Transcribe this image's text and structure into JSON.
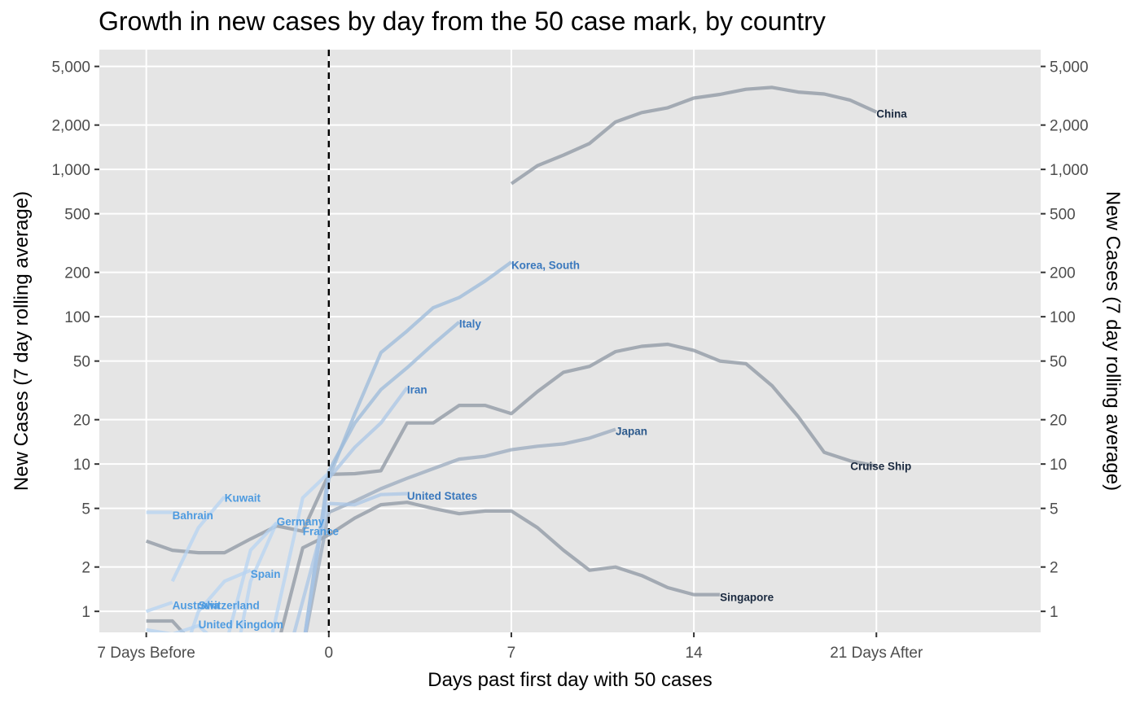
{
  "chart_data": {
    "type": "line",
    "title": "Growth in new cases by day from the 50 case mark, by country",
    "xlabel": "Days past first day with 50 cases",
    "ylabel": "New Cases (7 day rolling average)",
    "ylabel_right": "New Cases (7 day rolling average)",
    "y_scale": "log",
    "xlim": [
      -8.8,
      27.3
    ],
    "ylim": [
      0.72,
      6500
    ],
    "x_ticks": [
      {
        "value": -7,
        "label": "7 Days Before"
      },
      {
        "value": 0,
        "label": "0"
      },
      {
        "value": 7,
        "label": "7"
      },
      {
        "value": 14,
        "label": "14"
      },
      {
        "value": 21,
        "label": "21 Days After"
      }
    ],
    "y_ticks": [
      {
        "value": 1,
        "label": "1"
      },
      {
        "value": 2,
        "label": "2"
      },
      {
        "value": 5,
        "label": "5"
      },
      {
        "value": 10,
        "label": "10"
      },
      {
        "value": 20,
        "label": "20"
      },
      {
        "value": 50,
        "label": "50"
      },
      {
        "value": 100,
        "label": "100"
      },
      {
        "value": 200,
        "label": "200"
      },
      {
        "value": 500,
        "label": "500"
      },
      {
        "value": 1000,
        "label": "1,000"
      },
      {
        "value": 2000,
        "label": "2,000"
      },
      {
        "value": 5000,
        "label": "5,000"
      }
    ],
    "reference_line": {
      "x": 0,
      "style": "dashed"
    },
    "grid": true,
    "colors": {
      "panel": "#e5e5e5",
      "grid": "#ffffff",
      "grey_series": "#8c96a2",
      "blue_series": "#3a78bd",
      "light_series": "#9cc3ea"
    },
    "series": [
      {
        "name": "China",
        "color": "#8c96a2",
        "label_color": "#1b2a40",
        "points": [
          [
            7,
            800
          ],
          [
            8,
            1060
          ],
          [
            9,
            1250
          ],
          [
            10,
            1500
          ],
          [
            11,
            2100
          ],
          [
            12,
            2430
          ],
          [
            13,
            2620
          ],
          [
            14,
            3050
          ],
          [
            15,
            3230
          ],
          [
            16,
            3500
          ],
          [
            17,
            3600
          ],
          [
            18,
            3350
          ],
          [
            19,
            3250
          ],
          [
            20,
            2950
          ],
          [
            21,
            2450
          ]
        ]
      },
      {
        "name": "Cruise Ship",
        "color": "#8c96a2",
        "label_color": "#1b2a40",
        "points": [
          [
            -7,
            3
          ],
          [
            -6,
            2.6
          ],
          [
            -5,
            2.5
          ],
          [
            -4,
            2.5
          ],
          [
            -3,
            3.1
          ],
          [
            -2,
            3.8
          ],
          [
            -1,
            3.5
          ],
          [
            0,
            8.5
          ],
          [
            1,
            8.6
          ],
          [
            2,
            9
          ],
          [
            3,
            19
          ],
          [
            4,
            19
          ],
          [
            5,
            25
          ],
          [
            6,
            25
          ],
          [
            7,
            22
          ],
          [
            8,
            31
          ],
          [
            9,
            42
          ],
          [
            10,
            46
          ],
          [
            11,
            58
          ],
          [
            12,
            63
          ],
          [
            13,
            65
          ],
          [
            14,
            59
          ],
          [
            15,
            50
          ],
          [
            16,
            48
          ],
          [
            17,
            34
          ],
          [
            18,
            21
          ],
          [
            19,
            12
          ],
          [
            20,
            10.5
          ],
          [
            21,
            9.7
          ]
        ]
      },
      {
        "name": "Singapore",
        "color": "#8c96a2",
        "label_color": "#1b2a40",
        "points": [
          [
            -7,
            0.86
          ],
          [
            -6,
            0.86
          ],
          [
            -5,
            0.55
          ],
          [
            -4,
            0.55
          ],
          [
            -3,
            0.55
          ],
          [
            -2,
            0.55
          ],
          [
            -1,
            2.7
          ],
          [
            0,
            3.3
          ],
          [
            1,
            4.3
          ],
          [
            2,
            5.3
          ],
          [
            3,
            5.5
          ],
          [
            4,
            5
          ],
          [
            5,
            4.6
          ],
          [
            6,
            4.8
          ],
          [
            7,
            4.8
          ],
          [
            8,
            3.7
          ],
          [
            9,
            2.6
          ],
          [
            10,
            1.9
          ],
          [
            11,
            2
          ],
          [
            12,
            1.75
          ],
          [
            13,
            1.45
          ],
          [
            14,
            1.3
          ],
          [
            15,
            1.3
          ]
        ]
      },
      {
        "name": "Japan",
        "color": "#9aaabd",
        "label_color": "#2d5a8c",
        "points": [
          [
            -2,
            0.55
          ],
          [
            -1,
            0.55
          ],
          [
            0,
            4.7
          ],
          [
            1,
            5.6
          ],
          [
            2,
            6.8
          ],
          [
            3,
            8
          ],
          [
            4,
            9.3
          ],
          [
            5,
            10.8
          ],
          [
            6,
            11.3
          ],
          [
            7,
            12.5
          ],
          [
            8,
            13.2
          ],
          [
            9,
            13.7
          ],
          [
            10,
            15
          ],
          [
            11,
            17.2
          ]
        ]
      },
      {
        "name": "Korea, South",
        "color": "#9bb9da",
        "label_color": "#3a78bd",
        "points": [
          [
            -1,
            0.55
          ],
          [
            0,
            8
          ],
          [
            1,
            22
          ],
          [
            2,
            57
          ],
          [
            3,
            80
          ],
          [
            4,
            115
          ],
          [
            5,
            135
          ],
          [
            6,
            175
          ],
          [
            7,
            235
          ]
        ]
      },
      {
        "name": "Italy",
        "color": "#9bb9da",
        "label_color": "#3a78bd",
        "points": [
          [
            -1,
            0.55
          ],
          [
            0,
            9
          ],
          [
            1,
            19
          ],
          [
            2,
            32
          ],
          [
            3,
            45
          ],
          [
            4,
            65
          ],
          [
            5,
            92
          ]
        ]
      },
      {
        "name": "Iran",
        "color": "#a9c6e6",
        "label_color": "#3a78bd",
        "points": [
          [
            -1,
            0.55
          ],
          [
            0,
            8
          ],
          [
            1,
            13
          ],
          [
            2,
            19
          ],
          [
            3,
            33
          ]
        ]
      },
      {
        "name": "United States",
        "color": "#a9c6e6",
        "label_color": "#3a78bd",
        "points": [
          [
            -1.5,
            0.55
          ],
          [
            0,
            5.4
          ],
          [
            1,
            5.3
          ],
          [
            2,
            6.2
          ],
          [
            3,
            6.3
          ]
        ]
      },
      {
        "name": "Bahrain",
        "color": "#b6d3f1",
        "label_color": "#4e9be0",
        "points": [
          [
            -7,
            4.7
          ],
          [
            -6,
            4.7
          ]
        ]
      },
      {
        "name": "Kuwait",
        "color": "#b6d3f1",
        "label_color": "#4e9be0",
        "points": [
          [
            -6,
            1.6
          ],
          [
            -5,
            3.7
          ],
          [
            -4,
            6
          ]
        ]
      },
      {
        "name": "Germany",
        "color": "#b6d3f1",
        "label_color": "#4e9be0",
        "points": [
          [
            -4,
            0.55
          ],
          [
            -3,
            2.6
          ],
          [
            -2,
            4
          ]
        ]
      },
      {
        "name": "France",
        "color": "#b6d3f1",
        "label_color": "#4e9be0",
        "points": [
          [
            -2.3,
            0.55
          ],
          [
            -1,
            5.9
          ],
          [
            0,
            8.7
          ]
        ]
      },
      {
        "name": "Spain",
        "color": "#b6d3f1",
        "label_color": "#4e9be0",
        "points": [
          [
            -3.5,
            0.55
          ],
          [
            -3,
            1.6
          ],
          [
            -2,
            4
          ]
        ]
      },
      {
        "name": "Australia",
        "color": "#b6d3f1",
        "label_color": "#4e9be0",
        "points": [
          [
            -7,
            1
          ],
          [
            -6,
            1.15
          ]
        ]
      },
      {
        "name": "Switzerland",
        "color": "#b6d3f1",
        "label_color": "#4e9be0",
        "points": [
          [
            -5.5,
            0.55
          ],
          [
            -5,
            1
          ],
          [
            -4,
            1.6
          ],
          [
            -3,
            1.9
          ]
        ]
      },
      {
        "name": "United Kingdom",
        "color": "#b6d3f1",
        "label_color": "#4e9be0",
        "points": [
          [
            -7,
            0.75
          ],
          [
            -6,
            0.7
          ],
          [
            -5,
            0.8
          ],
          [
            -4,
            0.55
          ]
        ]
      }
    ],
    "labels": [
      {
        "series": "China",
        "x": 21,
        "y": 2400
      },
      {
        "series": "Cruise Ship",
        "x": 20,
        "y": 9.7
      },
      {
        "series": "Singapore",
        "x": 15,
        "y": 1.25
      },
      {
        "series": "Japan",
        "x": 11,
        "y": 16.8
      },
      {
        "series": "Korea, South",
        "x": 7,
        "y": 225
      },
      {
        "series": "Italy",
        "x": 5,
        "y": 90
      },
      {
        "series": "Iran",
        "x": 3,
        "y": 32
      },
      {
        "series": "United States",
        "x": 3,
        "y": 6.1
      },
      {
        "series": "Bahrain",
        "x": -6,
        "y": 4.5
      },
      {
        "series": "Kuwait",
        "x": -4,
        "y": 5.9
      },
      {
        "series": "Germany",
        "x": -2,
        "y": 4.1
      },
      {
        "series": "France",
        "x": -1,
        "y": 3.5
      },
      {
        "series": "Spain",
        "x": -3,
        "y": 1.8
      },
      {
        "series": "Australia",
        "x": -6,
        "y": 1.1
      },
      {
        "series": "Switzerland",
        "x": -5,
        "y": 1.1
      },
      {
        "series": "United Kingdom",
        "x": -5,
        "y": 0.82
      }
    ]
  }
}
